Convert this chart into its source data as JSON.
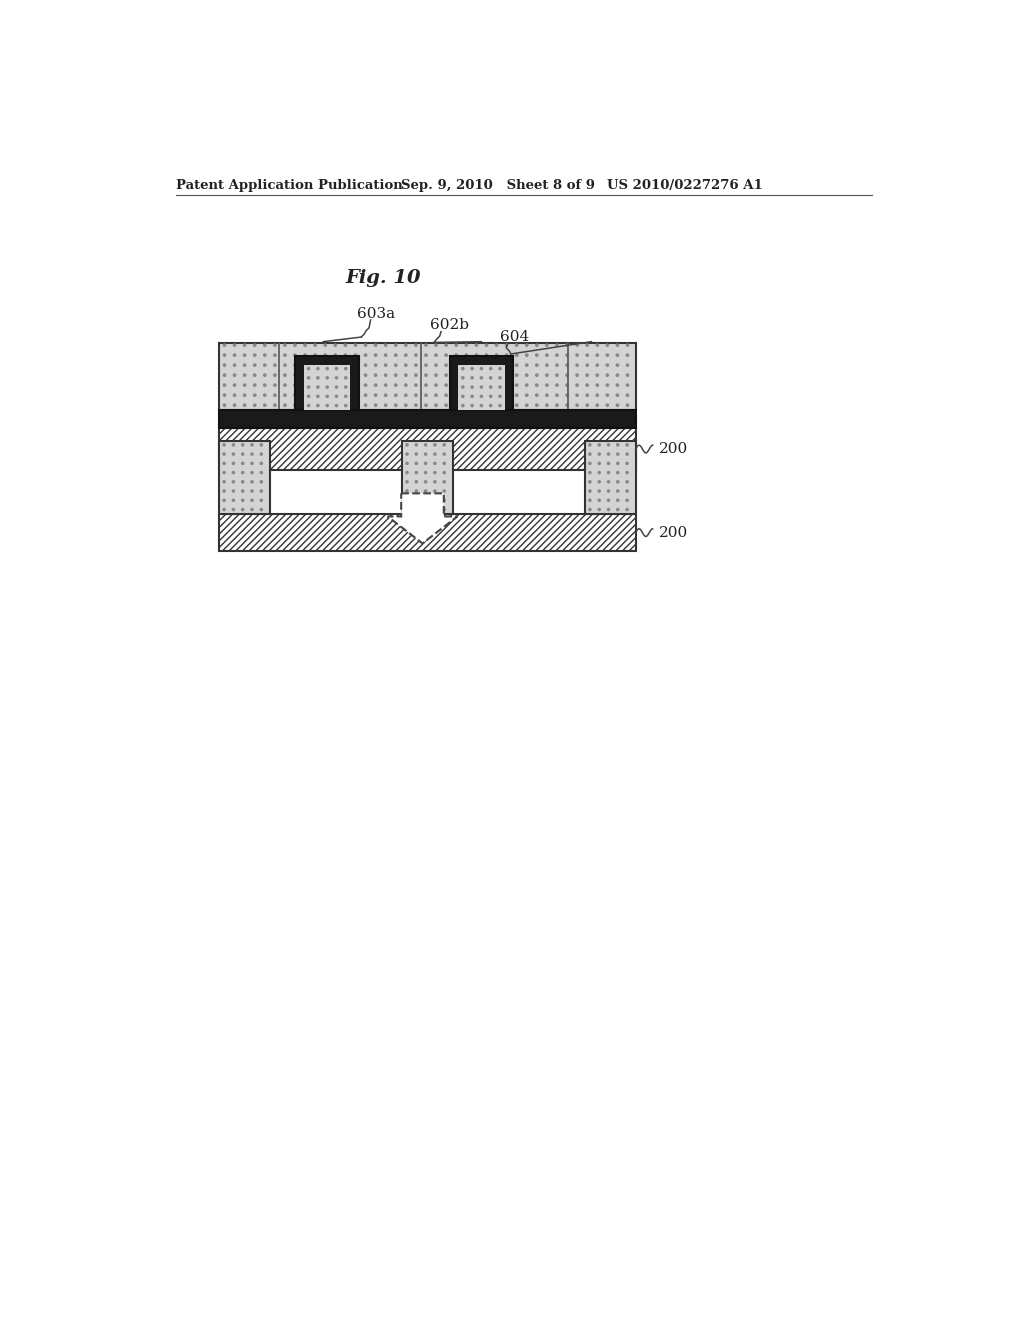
{
  "background_color": "#ffffff",
  "header_left": "Patent Application Publication",
  "header_mid": "Sep. 9, 2010   Sheet 8 of 9",
  "header_right": "US 2010/0227276 A1",
  "fig_title": "Fig. 10",
  "label_200_top": "200",
  "label_200_bot": "200",
  "label_603a": "603a",
  "label_602b": "602b",
  "label_604": "604",
  "dot_bg": "#d4d4d4",
  "dot_color": "#888888",
  "hatch_bg": "#ffffff",
  "black_layer": "#1a1a1a",
  "pillar_outline": "#222222",
  "text_color": "#222222"
}
